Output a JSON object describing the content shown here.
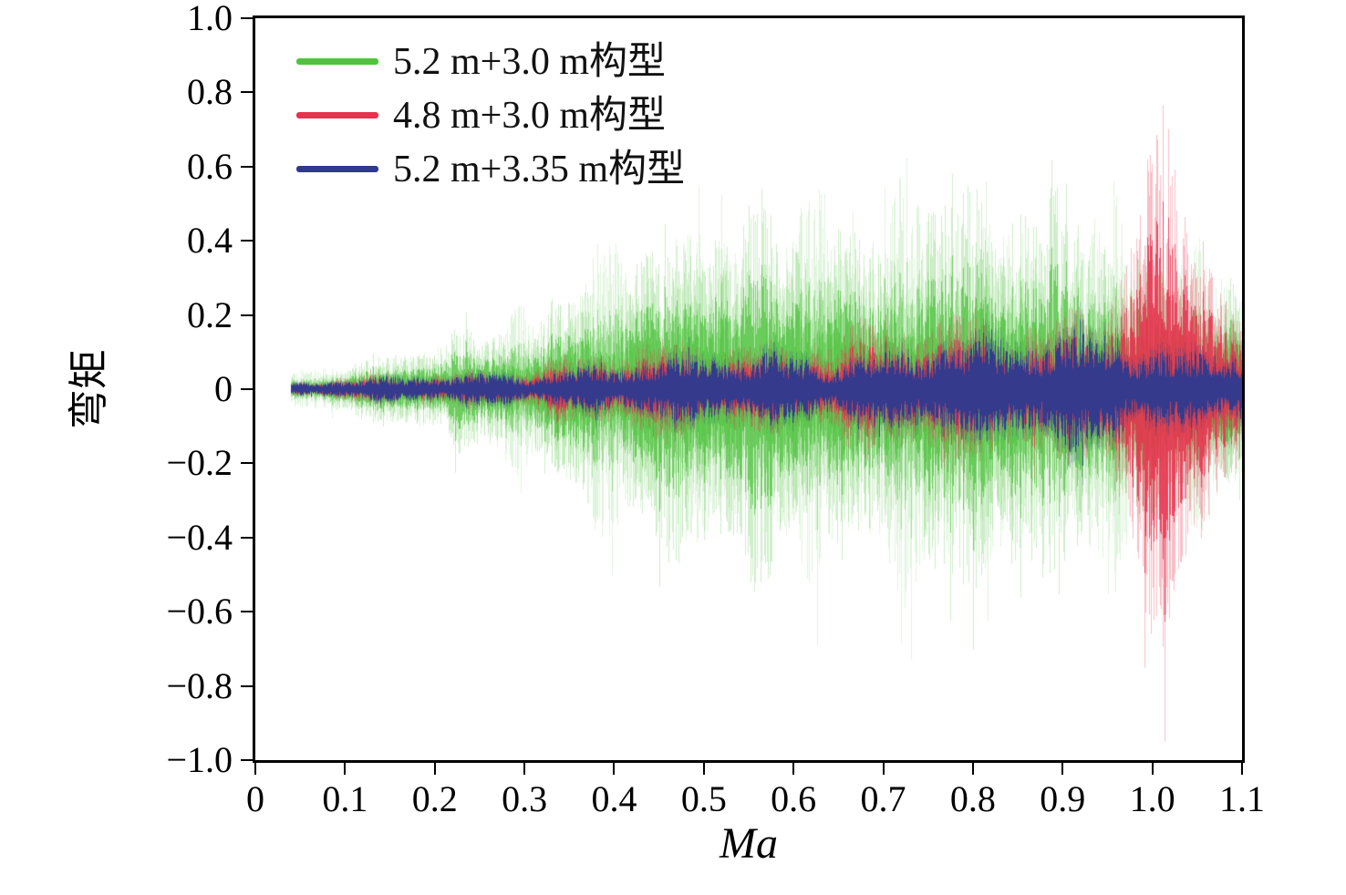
{
  "figure": {
    "xlabel": "Ma",
    "ylabel": "弯矩"
  },
  "chart_data": {
    "type": "area",
    "title": "",
    "xlabel": "Ma",
    "ylabel": "弯矩",
    "xlim": [
      0,
      1.1
    ],
    "ylim": [
      -1.0,
      1.0
    ],
    "grid": false,
    "legend_position": "top-left",
    "x_ticks": [
      0,
      0.1,
      0.2,
      0.3,
      0.4,
      0.5,
      0.6,
      0.7,
      0.8,
      0.9,
      1.0,
      1.1
    ],
    "x_tick_labels": [
      "0",
      "0.1",
      "0.2",
      "0.3",
      "0.4",
      "0.5",
      "0.6",
      "0.7",
      "0.8",
      "0.9",
      "1.0",
      "1.1"
    ],
    "y_ticks": [
      1.0,
      0.8,
      0.6,
      0.4,
      0.2,
      0,
      -0.2,
      -0.4,
      -0.6,
      -0.8,
      -1.0
    ],
    "y_tick_labels": [
      "1.0",
      "0.8",
      "0.6",
      "0.4",
      "0.2",
      "0",
      "−0.2",
      "−0.4",
      "−0.6",
      "−0.8",
      "−1.0"
    ],
    "description": "Dense oscillatory bending-moment (弯矩) signals versus Mach number (Ma); each series is characterized by its approximate ± amplitude envelope sampled at the x values below.",
    "series": [
      {
        "name": "5.2 m+3.0 m构型",
        "color": "#4fc33d",
        "x": [
          0.04,
          0.1,
          0.15,
          0.2,
          0.25,
          0.3,
          0.35,
          0.4,
          0.45,
          0.5,
          0.55,
          0.6,
          0.65,
          0.7,
          0.75,
          0.8,
          0.85,
          0.9,
          0.95,
          1.0,
          1.05,
          1.1
        ],
        "envelope": [
          0.04,
          0.06,
          0.09,
          0.12,
          0.17,
          0.24,
          0.3,
          0.33,
          0.38,
          0.44,
          0.48,
          0.53,
          0.55,
          0.47,
          0.5,
          0.46,
          0.52,
          0.48,
          0.6,
          0.38,
          0.32,
          0.3
        ]
      },
      {
        "name": "4.8 m+3.0 m构型",
        "color": "#e8314e",
        "x": [
          0.04,
          0.1,
          0.15,
          0.2,
          0.25,
          0.3,
          0.35,
          0.4,
          0.45,
          0.5,
          0.55,
          0.6,
          0.65,
          0.7,
          0.75,
          0.8,
          0.85,
          0.9,
          0.95,
          1.0,
          1.02,
          1.05,
          1.1
        ],
        "envelope": [
          0.02,
          0.03,
          0.04,
          0.05,
          0.06,
          0.08,
          0.09,
          0.1,
          0.12,
          0.14,
          0.15,
          0.16,
          0.17,
          0.17,
          0.18,
          0.19,
          0.2,
          0.22,
          0.35,
          0.7,
          0.65,
          0.5,
          0.16
        ]
      },
      {
        "name": "5.2 m+3.35 m构型",
        "color": "#2f3a8f",
        "x": [
          0.04,
          0.1,
          0.15,
          0.2,
          0.25,
          0.3,
          0.35,
          0.4,
          0.45,
          0.5,
          0.55,
          0.6,
          0.65,
          0.7,
          0.75,
          0.8,
          0.85,
          0.9,
          0.95,
          1.0,
          1.05,
          1.1
        ],
        "envelope": [
          0.02,
          0.03,
          0.035,
          0.045,
          0.055,
          0.065,
          0.075,
          0.085,
          0.095,
          0.105,
          0.115,
          0.125,
          0.13,
          0.135,
          0.14,
          0.15,
          0.16,
          0.19,
          0.26,
          0.15,
          0.13,
          0.12
        ]
      }
    ]
  }
}
